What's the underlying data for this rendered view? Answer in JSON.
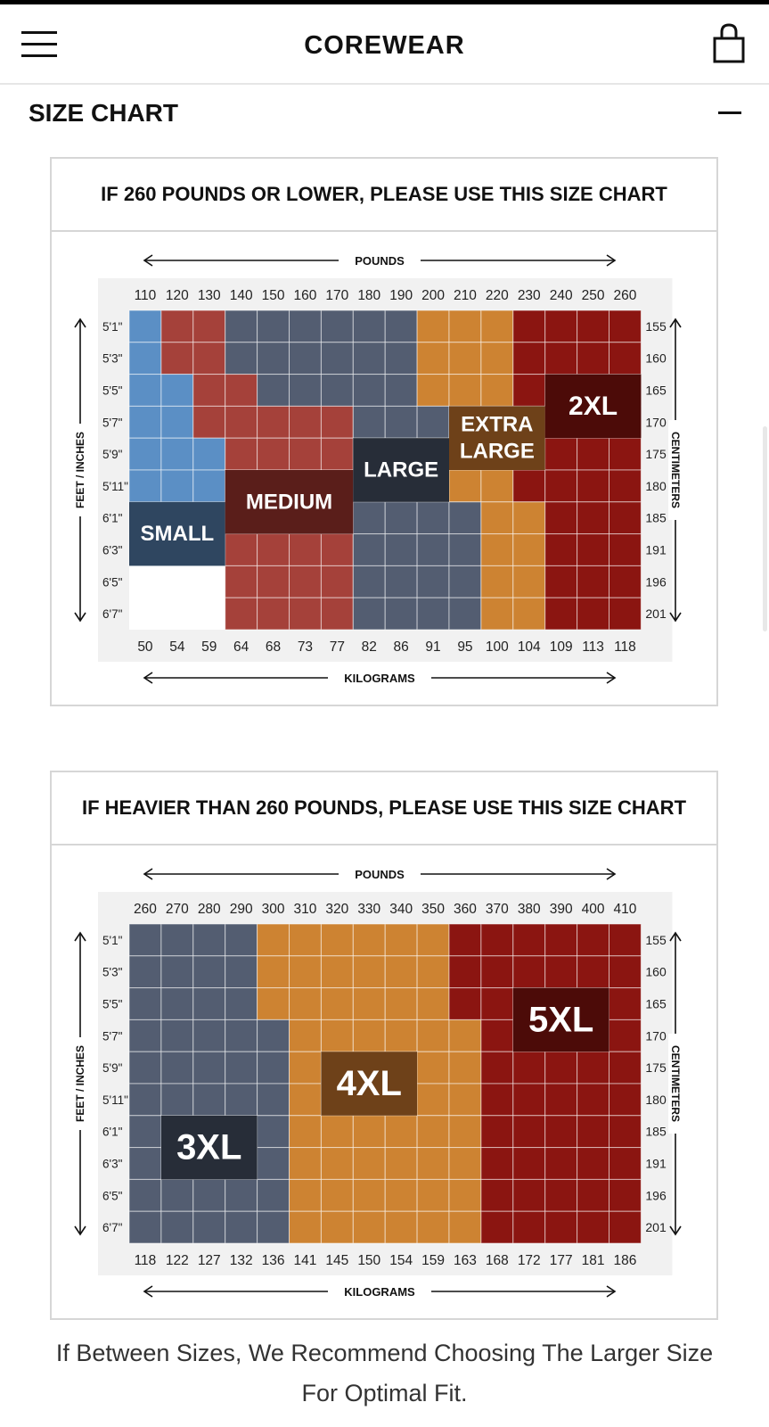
{
  "header": {
    "brand": "COREWEAR",
    "menu_icon": "hamburger-menu-icon",
    "bag_icon": "shopping-bag-icon"
  },
  "section": {
    "title": "SIZE CHART",
    "collapse_icon": "minus-icon"
  },
  "charts": [
    {
      "heading": "IF 260 POUNDS OR LOWER, PLEASE USE THIS SIZE CHART",
      "pounds_label": "POUNDS",
      "kilograms_label": "KILOGRAMS",
      "feet_label": "FEET / INCHES",
      "cm_label": "CENTIMETERS",
      "pounds": [
        "110",
        "120",
        "130",
        "140",
        "150",
        "160",
        "170",
        "180",
        "190",
        "200",
        "210",
        "220",
        "230",
        "240",
        "250",
        "260"
      ],
      "kilograms": [
        "50",
        "54",
        "59",
        "64",
        "68",
        "73",
        "77",
        "82",
        "86",
        "91",
        "95",
        "100",
        "104",
        "109",
        "113",
        "118"
      ],
      "heights": [
        "5'1\"",
        "5'3\"",
        "5'5\"",
        "5'7\"",
        "5'9\"",
        "5'11\"",
        "6'1\"",
        "6'3\"",
        "6'5\"",
        "6'7\""
      ],
      "centimeters": [
        "155",
        "160",
        "165",
        "170",
        "175",
        "180",
        "185",
        "191",
        "196",
        "201"
      ],
      "grid": [
        "SMMLLLLLLXXXQQQQ",
        "SMMLLLLLLXXXQQQQ",
        "SSMMLLLLLXXXQQQQ",
        "SSMMMMMLLLXXQQQQ",
        "SSSMMMMLLXXXQQQQ",
        "SSSMMMMLLXXXQQQQ",
        "SSSMMMMLLLLXXQQQ",
        "SSSMMMMLLLLXXQQQ",
        "___MMMMLLLLXXQQQ",
        "___MMMMLLLLXXQQQ"
      ],
      "size_colors": {
        "S": "#5b8fc5",
        "M": "#a5413a",
        "L": "#535d71",
        "X": "#cd8332",
        "Q": "#8b1511",
        "_": "#ffffff"
      },
      "size_labels": [
        {
          "text": "SMALL",
          "lines": [
            "SMALL"
          ],
          "bg": "#2f4660",
          "col": 0,
          "row": 6,
          "w": 3,
          "h": 2,
          "fs": 24
        },
        {
          "text": "MEDIUM",
          "lines": [
            "MEDIUM"
          ],
          "bg": "#5a1e1a",
          "col": 3,
          "row": 5,
          "w": 4,
          "h": 2,
          "fs": 24
        },
        {
          "text": "LARGE",
          "lines": [
            "LARGE"
          ],
          "bg": "#272d38",
          "col": 7,
          "row": 4,
          "w": 3,
          "h": 2,
          "fs": 24
        },
        {
          "text": "EXTRA LARGE",
          "lines": [
            "EXTRA",
            "LARGE"
          ],
          "bg": "#6e4119",
          "col": 10,
          "row": 3,
          "w": 3,
          "h": 2,
          "fs": 24
        },
        {
          "text": "2XL",
          "lines": [
            "2XL"
          ],
          "bg": "#4c0b08",
          "col": 13,
          "row": 2,
          "w": 3,
          "h": 2,
          "fs": 30
        }
      ]
    },
    {
      "heading": "IF HEAVIER THAN 260 POUNDS, PLEASE USE THIS SIZE CHART",
      "pounds_label": "POUNDS",
      "kilograms_label": "KILOGRAMS",
      "feet_label": "FEET / INCHES",
      "cm_label": "CENTIMETERS",
      "pounds": [
        "260",
        "270",
        "280",
        "290",
        "300",
        "310",
        "320",
        "330",
        "340",
        "350",
        "360",
        "370",
        "380",
        "390",
        "400",
        "410"
      ],
      "kilograms": [
        "118",
        "122",
        "127",
        "132",
        "136",
        "141",
        "145",
        "150",
        "154",
        "159",
        "163",
        "168",
        "172",
        "177",
        "181",
        "186"
      ],
      "heights": [
        "5'1\"",
        "5'3\"",
        "5'5\"",
        "5'7\"",
        "5'9\"",
        "5'11\"",
        "6'1\"",
        "6'3\"",
        "6'5\"",
        "6'7\""
      ],
      "centimeters": [
        "155",
        "160",
        "165",
        "170",
        "175",
        "180",
        "185",
        "191",
        "196",
        "201"
      ],
      "grid": [
        "LLLLXXXXXXQQQQQQ",
        "LLLLXXXXXXQQQQQQ",
        "LLLLXXXXXXQQQQQQ",
        "LLLLLXXXXXXQQQQQ",
        "LLLLLXXXXXXQQQQQ",
        "LLLLLXXXXXXQQQQQ",
        "LLLLLXXXXXXQQQQQ",
        "LLLLLXXXXXXQQQQQ",
        "LLLLLXXXXXXQQQQQ",
        "LLLLLXXXXXXQQQQQ"
      ],
      "size_colors": {
        "L": "#535d71",
        "X": "#cd8332",
        "Q": "#8b1511"
      },
      "size_labels": [
        {
          "text": "3XL",
          "lines": [
            "3XL"
          ],
          "bg": "#272d38",
          "col": 1,
          "row": 6,
          "w": 3,
          "h": 2,
          "fs": 40
        },
        {
          "text": "4XL",
          "lines": [
            "4XL"
          ],
          "bg": "#6e4119",
          "col": 6,
          "row": 4,
          "w": 3,
          "h": 2,
          "fs": 40
        },
        {
          "text": "5XL",
          "lines": [
            "5XL"
          ],
          "bg": "#4c0b08",
          "col": 12,
          "row": 2,
          "w": 3,
          "h": 2,
          "fs": 40
        }
      ]
    }
  ],
  "footer": {
    "note_line1": "If Between Sizes, We Recommend Choosing The Larger Size",
    "note_line2": "For Optimal Fit."
  }
}
